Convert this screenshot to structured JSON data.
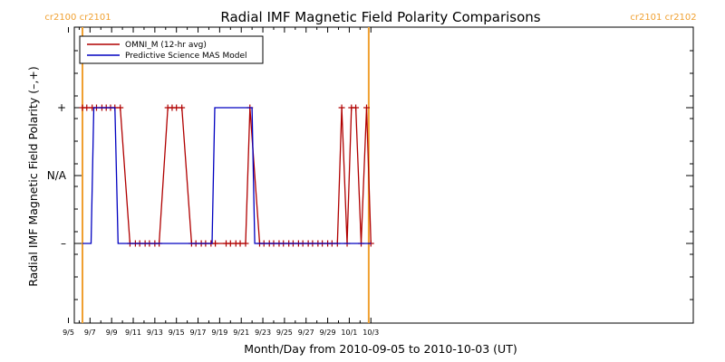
{
  "chart_data": {
    "type": "line",
    "title": "Radial IMF Magnetic Field Polarity Comparisons",
    "xlabel": "Month/Day from 2010-09-05 to 2010-10-03 (UT)",
    "ylabel": "Radial IMF Magnetic Field Polarity (–,+)",
    "x_ticks": [
      "9/5",
      "9/7",
      "9/9",
      "9/11",
      "9/13",
      "9/15",
      "9/17",
      "9/19",
      "9/21",
      "9/23",
      "9/25",
      "9/27",
      "9/29",
      "10/1",
      "10/3"
    ],
    "y_ticks": [
      "+",
      "N/A",
      "–"
    ],
    "ylim": [
      "–",
      "+"
    ],
    "legend": {
      "placement": "top-left",
      "entries": [
        "OMNI_M (12-hr avg)",
        "Predictive Science MAS Model"
      ]
    },
    "carrington_markers": [
      {
        "label": "cr2100 cr2101",
        "day": 1.3
      },
      {
        "label": "cr2101 cr2102",
        "day": 27.8
      }
    ],
    "series": [
      {
        "name": "OMNI_M (12-hr avg)",
        "color": "#b00000",
        "markers": true,
        "points": [
          [
            1.3,
            1
          ],
          [
            1.7,
            1
          ],
          [
            2.2,
            1
          ],
          [
            2.6,
            1
          ],
          [
            3.1,
            1
          ],
          [
            3.5,
            1
          ],
          [
            3.9,
            1
          ],
          [
            4.3,
            1
          ],
          [
            4.8,
            1
          ],
          [
            5.7,
            -1
          ],
          [
            6.2,
            -1
          ],
          [
            6.6,
            -1
          ],
          [
            7.1,
            -1
          ],
          [
            7.5,
            -1
          ],
          [
            8.0,
            -1
          ],
          [
            8.4,
            -1
          ],
          [
            9.2,
            1
          ],
          [
            9.6,
            1
          ],
          [
            10.0,
            1
          ],
          [
            10.5,
            1
          ],
          [
            11.4,
            -1
          ],
          [
            11.8,
            -1
          ],
          [
            12.3,
            -1
          ],
          [
            12.7,
            -1
          ],
          [
            13.2,
            -1
          ],
          [
            13.6,
            -1
          ],
          [
            14.6,
            -1
          ],
          [
            15.0,
            -1
          ],
          [
            15.5,
            -1
          ],
          [
            15.9,
            -1
          ],
          [
            16.4,
            -1
          ],
          [
            16.8,
            1
          ],
          [
            17.7,
            -1
          ],
          [
            18.1,
            -1
          ],
          [
            18.6,
            -1
          ],
          [
            19.0,
            -1
          ],
          [
            19.5,
            -1
          ],
          [
            19.9,
            -1
          ],
          [
            20.4,
            -1
          ],
          [
            20.8,
            -1
          ],
          [
            21.3,
            -1
          ],
          [
            21.7,
            -1
          ],
          [
            22.2,
            -1
          ],
          [
            22.6,
            -1
          ],
          [
            23.1,
            -1
          ],
          [
            23.5,
            -1
          ],
          [
            24.0,
            -1
          ],
          [
            24.4,
            -1
          ],
          [
            24.9,
            -1
          ],
          [
            25.3,
            1
          ],
          [
            25.8,
            -1
          ],
          [
            26.2,
            1
          ],
          [
            26.6,
            1
          ],
          [
            27.1,
            -1
          ],
          [
            27.6,
            1
          ],
          [
            28.0,
            -1
          ]
        ]
      },
      {
        "name": "Predictive Science MAS Model",
        "color": "#0000c0",
        "markers": false,
        "points": [
          [
            1.3,
            -1
          ],
          [
            2.1,
            -1
          ],
          [
            2.35,
            1
          ],
          [
            4.3,
            1
          ],
          [
            4.6,
            -1
          ],
          [
            13.3,
            -1
          ],
          [
            13.55,
            1
          ],
          [
            17.0,
            1
          ],
          [
            17.25,
            -1
          ],
          [
            28.0,
            -1
          ]
        ]
      }
    ]
  }
}
